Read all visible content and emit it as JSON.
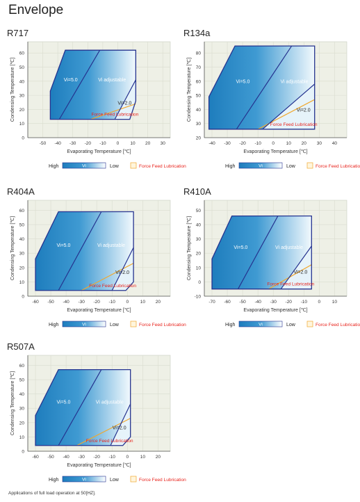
{
  "page": {
    "title": "Envelope",
    "footnote": "Applications of full load operation at 50[HZ]."
  },
  "colors": {
    "plot_bg": "#eef0e6",
    "grid": "#d9dccf",
    "envelope_dark": "#1e7dbd",
    "envelope_light": "#f2f9fd",
    "border": "#25338f",
    "ffl_line": "#f0a830",
    "ffl_text": "#e8231c",
    "text": "#222222"
  },
  "common": {
    "xlabel": "Evaporating Temperature [℃]",
    "ylabel": "Condensing Temperature [℃]",
    "legend": {
      "high": "High",
      "mid": "Vi",
      "low": "Low",
      "ffl": "Force Feed Lubrication"
    },
    "region_labels": {
      "vi50": "Vi=5.0",
      "adj": "Vi adjustable",
      "vi20": "Vi=2.0",
      "ffl": "Force Feed Lubrication"
    }
  },
  "chart_data": [
    {
      "type": "area",
      "title": "R717",
      "xlim": [
        -60,
        35
      ],
      "ylim": [
        0,
        68
      ],
      "xticks": [
        -50,
        -40,
        -30,
        -20,
        -10,
        0,
        10,
        20,
        30
      ],
      "yticks": [
        0,
        10,
        20,
        30,
        40,
        50,
        60
      ],
      "envelope": [
        [
          -45,
          13
        ],
        [
          -45,
          33
        ],
        [
          -35,
          62
        ],
        [
          12,
          62
        ],
        [
          12,
          26
        ],
        [
          8,
          13
        ]
      ],
      "vi50_boundary": [
        [
          -39,
          13
        ],
        [
          -12,
          62
        ]
      ],
      "vi20_boundary": [
        [
          -2,
          13
        ],
        [
          12,
          41
        ]
      ],
      "ffl_line": [
        [
          -18,
          13
        ],
        [
          12,
          24
        ]
      ],
      "legend_low_text": "Low"
    },
    {
      "type": "area",
      "title": "R134a",
      "xlim": [
        -45,
        48
      ],
      "ylim": [
        20,
        88
      ],
      "xticks": [
        -40,
        -30,
        -20,
        -10,
        0,
        10,
        20,
        30,
        40
      ],
      "yticks": [
        20,
        30,
        40,
        50,
        60,
        70,
        80
      ],
      "envelope": [
        [
          -42,
          26
        ],
        [
          -42,
          49
        ],
        [
          -25,
          85
        ],
        [
          27,
          85
        ],
        [
          27,
          26
        ]
      ],
      "vi50_boundary": [
        [
          -24,
          26
        ],
        [
          12,
          85
        ]
      ],
      "vi20_boundary": [
        [
          -7,
          26
        ],
        [
          27,
          58
        ]
      ],
      "ffl_line": [
        [
          -10,
          26
        ],
        [
          27,
          47
        ]
      ],
      "legend_low_text": "Low"
    },
    {
      "type": "area",
      "title": "R404A",
      "xlim": [
        -65,
        28
      ],
      "ylim": [
        0,
        67
      ],
      "xticks": [
        -60,
        -50,
        -40,
        -30,
        -20,
        -10,
        0,
        10,
        20
      ],
      "yticks": [
        0,
        10,
        20,
        30,
        40,
        50,
        60
      ],
      "envelope": [
        [
          -60,
          4
        ],
        [
          -60,
          26
        ],
        [
          -45,
          59
        ],
        [
          4,
          59
        ],
        [
          4,
          10
        ],
        [
          -1,
          4
        ]
      ],
      "vi50_boundary": [
        [
          -45,
          4
        ],
        [
          -17,
          59
        ]
      ],
      "vi20_boundary": [
        [
          -10,
          4
        ],
        [
          4,
          34
        ]
      ],
      "ffl_line": [
        [
          -30,
          4
        ],
        [
          4,
          23
        ]
      ],
      "legend_low_text": "Low"
    },
    {
      "type": "area",
      "title": "R410A",
      "xlim": [
        -75,
        18
      ],
      "ylim": [
        -10,
        57
      ],
      "xticks": [
        -70,
        -60,
        -50,
        -40,
        -30,
        -20,
        -10,
        0,
        10
      ],
      "yticks": [
        -10,
        0,
        10,
        20,
        30,
        40,
        50
      ],
      "envelope": [
        [
          -70,
          -5
        ],
        [
          -70,
          16
        ],
        [
          -57,
          46
        ],
        [
          -5,
          46
        ],
        [
          -5,
          -5
        ]
      ],
      "vi50_boundary": [
        [
          -53,
          -5
        ],
        [
          -27,
          46
        ]
      ],
      "vi20_boundary": [
        [
          -25,
          -5
        ],
        [
          -5,
          25
        ]
      ],
      "ffl_line": [
        [
          -33,
          -5
        ],
        [
          -5,
          12
        ]
      ],
      "legend_low_text": "Low"
    },
    {
      "type": "area",
      "title": "R507A",
      "xlim": [
        -65,
        28
      ],
      "ylim": [
        0,
        67
      ],
      "xticks": [
        -60,
        -50,
        -40,
        -30,
        -20,
        -10,
        0,
        10,
        20
      ],
      "yticks": [
        0,
        10,
        20,
        30,
        40,
        50,
        60
      ],
      "envelope": [
        [
          -60,
          4
        ],
        [
          -60,
          25
        ],
        [
          -45,
          57
        ],
        [
          2,
          57
        ],
        [
          2,
          10
        ],
        [
          -3,
          4
        ]
      ],
      "vi50_boundary": [
        [
          -45,
          4
        ],
        [
          -17,
          57
        ]
      ],
      "vi20_boundary": [
        [
          -11,
          4
        ],
        [
          2,
          33
        ]
      ],
      "ffl_line": [
        [
          -33,
          4
        ],
        [
          2,
          23
        ]
      ],
      "legend_low_text": "Low"
    }
  ]
}
